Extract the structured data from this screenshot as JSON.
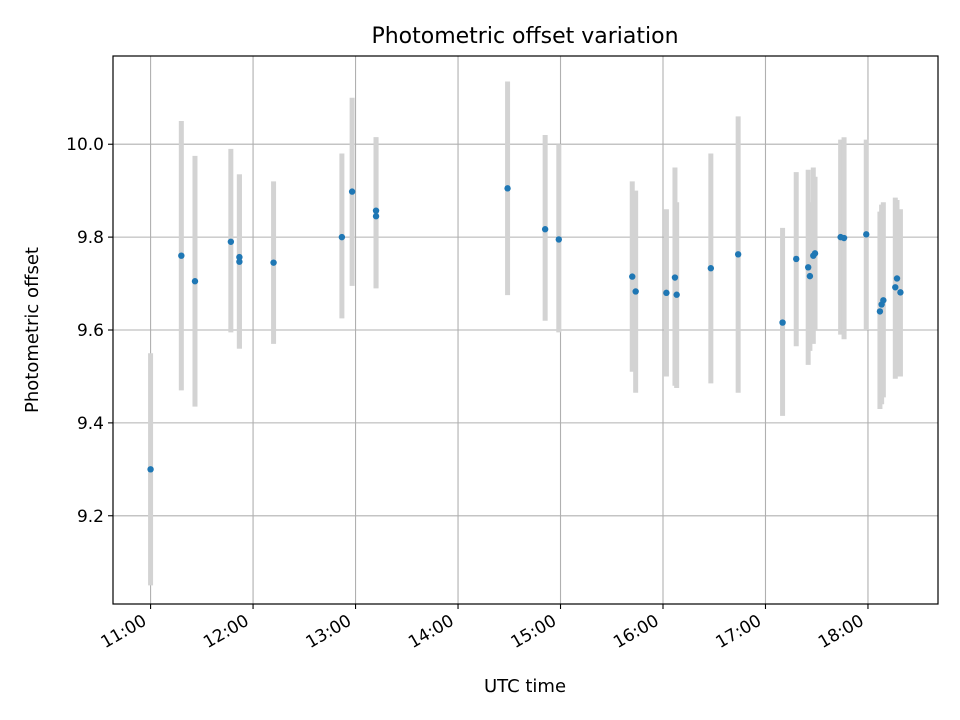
{
  "chart_data": {
    "type": "scatter",
    "title": "Photometric offset variation",
    "xlabel": "UTC time",
    "ylabel": "Photometric offset",
    "x_ticks": [
      "11:00",
      "12:00",
      "13:00",
      "14:00",
      "15:00",
      "16:00",
      "17:00",
      "18:00"
    ],
    "y_ticks": [
      9.2,
      9.4,
      9.6,
      9.8,
      10.0
    ],
    "xlim": [
      "10:38",
      "18:41"
    ],
    "ylim": [
      9.01,
      10.19
    ],
    "grid": true,
    "marker_color": "#1f77b4",
    "errorbar_color": "#d3d3d3",
    "points": [
      {
        "t": "11:00",
        "y": 9.3,
        "lo": 9.05,
        "hi": 9.55
      },
      {
        "t": "11:18",
        "y": 9.76,
        "lo": 9.47,
        "hi": 10.05
      },
      {
        "t": "11:26",
        "y": 9.705,
        "lo": 9.435,
        "hi": 9.975
      },
      {
        "t": "11:47",
        "y": 9.79,
        "lo": 9.595,
        "hi": 9.99
      },
      {
        "t": "11:52",
        "y": 9.757,
        "lo": 9.56,
        "hi": 9.935
      },
      {
        "t": "11:52",
        "y": 9.747,
        "lo": 9.56,
        "hi": 9.935
      },
      {
        "t": "12:12",
        "y": 9.745,
        "lo": 9.57,
        "hi": 9.92
      },
      {
        "t": "12:52",
        "y": 9.8,
        "lo": 9.625,
        "hi": 9.98
      },
      {
        "t": "12:58",
        "y": 9.898,
        "lo": 9.695,
        "hi": 10.1
      },
      {
        "t": "13:12",
        "y": 9.857,
        "lo": 9.69,
        "hi": 10.015
      },
      {
        "t": "13:12",
        "y": 9.845,
        "lo": 9.69,
        "hi": 10.015
      },
      {
        "t": "14:29",
        "y": 9.905,
        "lo": 9.675,
        "hi": 10.135
      },
      {
        "t": "14:51",
        "y": 9.817,
        "lo": 9.62,
        "hi": 10.02
      },
      {
        "t": "14:59",
        "y": 9.795,
        "lo": 9.595,
        "hi": 10.0
      },
      {
        "t": "15:42",
        "y": 9.715,
        "lo": 9.51,
        "hi": 9.92
      },
      {
        "t": "15:44",
        "y": 9.683,
        "lo": 9.465,
        "hi": 9.9
      },
      {
        "t": "16:02",
        "y": 9.68,
        "lo": 9.5,
        "hi": 9.86
      },
      {
        "t": "16:07",
        "y": 9.713,
        "lo": 9.48,
        "hi": 9.95
      },
      {
        "t": "16:08",
        "y": 9.676,
        "lo": 9.475,
        "hi": 9.875
      },
      {
        "t": "16:28",
        "y": 9.733,
        "lo": 9.485,
        "hi": 9.98
      },
      {
        "t": "16:44",
        "y": 9.763,
        "lo": 9.465,
        "hi": 10.06
      },
      {
        "t": "17:10",
        "y": 9.616,
        "lo": 9.415,
        "hi": 9.82
      },
      {
        "t": "17:18",
        "y": 9.753,
        "lo": 9.565,
        "hi": 9.94
      },
      {
        "t": "17:25",
        "y": 9.735,
        "lo": 9.525,
        "hi": 9.945
      },
      {
        "t": "17:26",
        "y": 9.716,
        "lo": 9.555,
        "hi": 9.875
      },
      {
        "t": "17:28",
        "y": 9.76,
        "lo": 9.57,
        "hi": 9.95
      },
      {
        "t": "17:29",
        "y": 9.765,
        "lo": 9.6,
        "hi": 9.93
      },
      {
        "t": "17:44",
        "y": 9.8,
        "lo": 9.59,
        "hi": 10.01
      },
      {
        "t": "17:46",
        "y": 9.798,
        "lo": 9.58,
        "hi": 10.015
      },
      {
        "t": "17:59",
        "y": 9.806,
        "lo": 9.6,
        "hi": 10.01
      },
      {
        "t": "18:07",
        "y": 9.64,
        "lo": 9.43,
        "hi": 9.855
      },
      {
        "t": "18:08",
        "y": 9.655,
        "lo": 9.44,
        "hi": 9.87
      },
      {
        "t": "18:09",
        "y": 9.664,
        "lo": 9.455,
        "hi": 9.875
      },
      {
        "t": "18:16",
        "y": 9.692,
        "lo": 9.495,
        "hi": 9.885
      },
      {
        "t": "18:17",
        "y": 9.711,
        "lo": 9.5,
        "hi": 9.88
      },
      {
        "t": "18:19",
        "y": 9.681,
        "lo": 9.5,
        "hi": 9.86
      }
    ]
  }
}
